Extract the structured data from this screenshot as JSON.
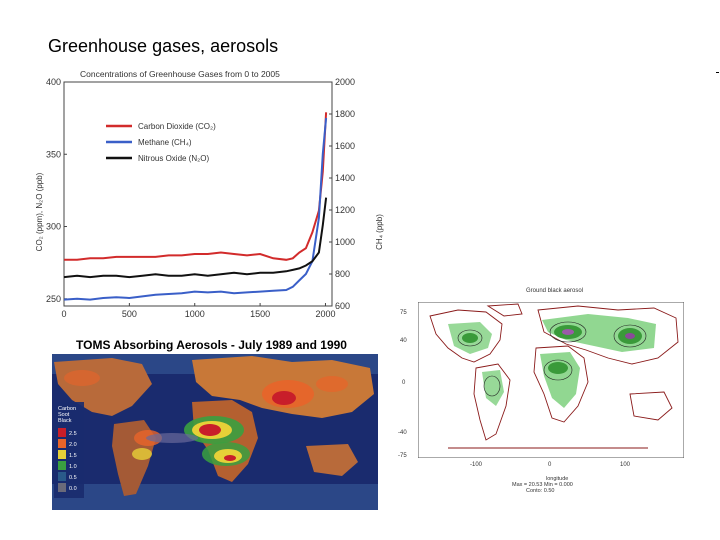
{
  "slide": {
    "title": "Greenhouse gases, aerosols"
  },
  "chart_data": {
    "type": "line",
    "title": "Concentrations of Greenhouse Gases from 0 to 2005",
    "xlabel": "",
    "ylabel": "CO₂ (ppm), N₂O (ppb)",
    "y2label": "CH₄ (ppb)",
    "xlim": [
      0,
      2050
    ],
    "ylim": [
      245,
      400
    ],
    "y2lim": [
      600,
      2000
    ],
    "x_ticks": [
      "0",
      "500",
      "1000",
      "1500",
      "2000"
    ],
    "y_ticks": [
      "250",
      "300",
      "350",
      "400"
    ],
    "y2_ticks": [
      "600",
      "800",
      "1000",
      "1200",
      "1400",
      "1600",
      "1800",
      "2000"
    ],
    "legend_position": "top-left",
    "series": [
      {
        "name": "Carbon Dioxide (CO₂)",
        "color": "#d22b2b",
        "axis": "left",
        "x": [
          0,
          100,
          200,
          300,
          400,
          500,
          600,
          700,
          800,
          900,
          1000,
          1100,
          1200,
          1300,
          1400,
          1500,
          1600,
          1700,
          1750,
          1800,
          1850,
          1900,
          1950,
          1980,
          2005
        ],
        "y": [
          277,
          277,
          278,
          278,
          279,
          279,
          279,
          279,
          280,
          280,
          281,
          281,
          282,
          281,
          280,
          281,
          278,
          277,
          278,
          282,
          285,
          296,
          311,
          338,
          379
        ]
      },
      {
        "name": "Methane (CH₄)",
        "color": "#3a5fc8",
        "axis": "right",
        "x": [
          0,
          100,
          200,
          300,
          400,
          500,
          600,
          700,
          800,
          900,
          1000,
          1100,
          1200,
          1300,
          1400,
          1500,
          1600,
          1700,
          1750,
          1800,
          1850,
          1900,
          1950,
          1980,
          2005
        ],
        "y": [
          640,
          645,
          640,
          650,
          655,
          650,
          660,
          670,
          675,
          680,
          690,
          685,
          690,
          680,
          685,
          690,
          695,
          700,
          720,
          760,
          800,
          880,
          1150,
          1550,
          1775
        ]
      },
      {
        "name": "Nitrous Oxide (N₂O)",
        "color": "#111111",
        "axis": "left",
        "x": [
          0,
          100,
          200,
          300,
          400,
          500,
          600,
          700,
          800,
          900,
          1000,
          1100,
          1200,
          1300,
          1400,
          1500,
          1600,
          1700,
          1750,
          1800,
          1850,
          1900,
          1950,
          1980,
          2005
        ],
        "y": [
          265,
          266,
          265,
          266,
          266,
          265,
          266,
          267,
          266,
          266,
          267,
          266,
          267,
          268,
          267,
          268,
          268,
          269,
          270,
          271,
          273,
          276,
          282,
          301,
          320
        ]
      }
    ]
  },
  "toms": {
    "title": "TOMS Absorbing Aerosols - July 1989 and 1990",
    "legend_header": [
      "Carbon",
      "Soot",
      "Black"
    ],
    "legend_values": [
      "2.5",
      "2.0",
      "1.5",
      "1.0",
      "0.5",
      "0.0"
    ],
    "legend_colors": [
      "#c81e2a",
      "#e8642a",
      "#e6d038",
      "#3aa040",
      "#2a5a8a",
      "#6a6a7a"
    ]
  },
  "model_map": {
    "top_label": "Ground black aerosol",
    "y_ticks": [
      "75",
      "40",
      "0",
      "-40",
      "-75"
    ],
    "x_ticks": [
      "-100",
      "0",
      "100"
    ],
    "footer_line1": "longitude",
    "footer_line2": "Max = 20.53 Min = 0.000",
    "footer_line3": "Conto: 0.50"
  }
}
